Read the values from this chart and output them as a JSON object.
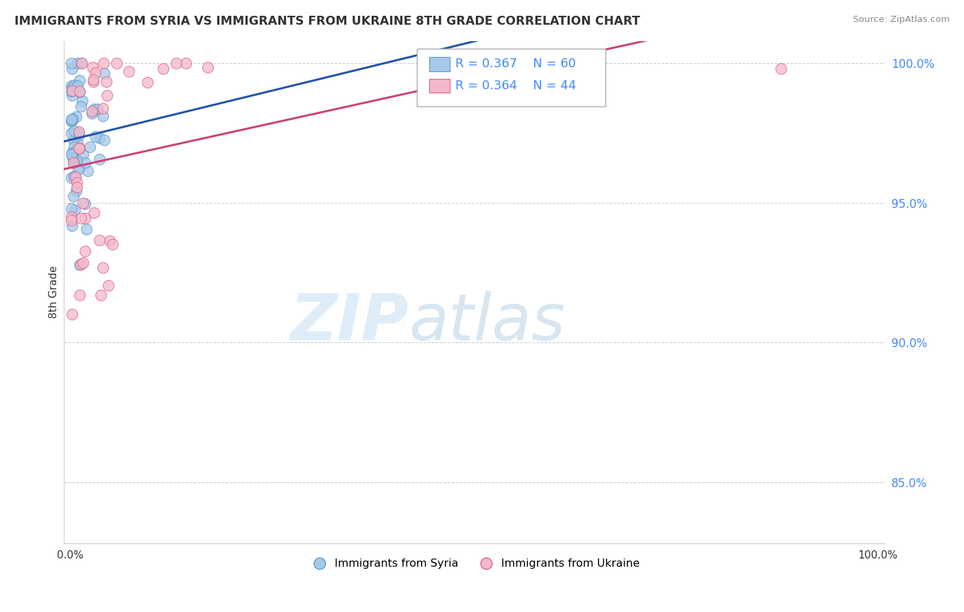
{
  "title": "IMMIGRANTS FROM SYRIA VS IMMIGRANTS FROM UKRAINE 8TH GRADE CORRELATION CHART",
  "source": "Source: ZipAtlas.com",
  "ylabel": "8th Grade",
  "ylim": [
    0.828,
    1.008
  ],
  "xlim": [
    -0.008,
    1.008
  ],
  "yticks": [
    0.85,
    0.9,
    0.95,
    1.0
  ],
  "ytick_labels": [
    "85.0%",
    "90.0%",
    "95.0%",
    "100.0%"
  ],
  "syria_color": "#a8c8e8",
  "syria_edge": "#5599cc",
  "ukraine_color": "#f4b8cc",
  "ukraine_edge": "#e06080",
  "syria_R": 0.367,
  "syria_N": 60,
  "ukraine_R": 0.364,
  "ukraine_N": 44,
  "trendline_syria_color": "#2255aa",
  "trendline_ukraine_color": "#cc4477",
  "watermark_zip": "ZIP",
  "watermark_atlas": "atlas",
  "background_color": "#ffffff",
  "grid_color": "#cccccc",
  "ytick_color": "#4488ff",
  "xtick_color": "#333333",
  "legend_label_syria": "Immigrants from Syria",
  "legend_label_ukraine": "Immigrants from Ukraine"
}
